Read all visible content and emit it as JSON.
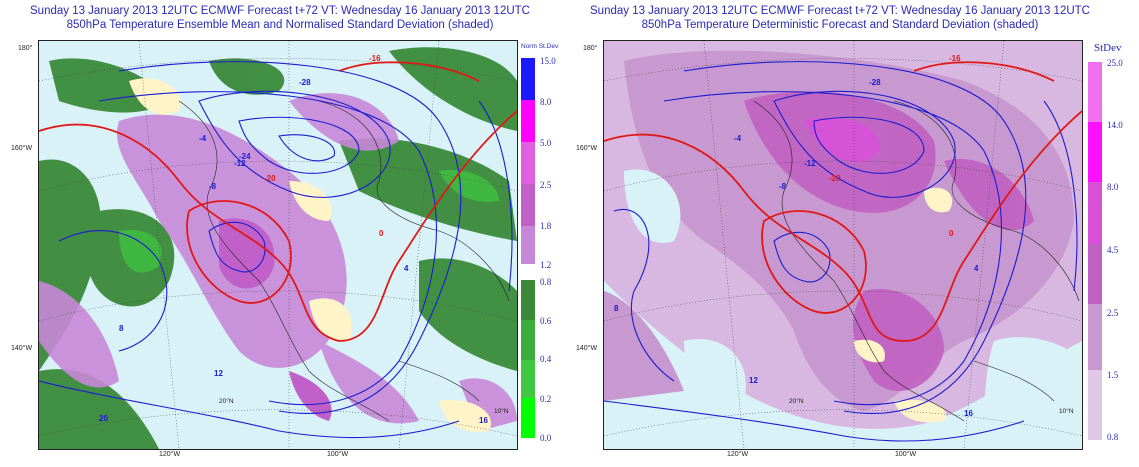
{
  "left_panel": {
    "title_line1": "Sunday 13 January 2013 12UTC ECMWF Forecast t+72  VT: Wednesday 16 January 2013 12UTC",
    "title_line2": "850hPa Temperature Ensemble Mean and Normalised Standard Deviation (shaded)",
    "lat_labels": [
      "180°",
      "160°W",
      "140°W"
    ],
    "lon_labels": [
      "120°W",
      "100°W"
    ],
    "map_labels": [
      "20°N",
      "10°N"
    ],
    "contour_labels": [
      "-16",
      "-20",
      "-24",
      "-28",
      "-12",
      "-8",
      "-4",
      "0",
      "4",
      "8",
      "12",
      "16",
      "20"
    ],
    "colorbar": {
      "title": "Norm St.Dev",
      "ticks": [
        "15.0",
        "8.0",
        "5.0",
        "2.5",
        "1.8",
        "1.2",
        "0.8",
        "0.6",
        "0.4",
        "0.2",
        "0.0"
      ],
      "colors": {
        "15.0": "#1a1aff",
        "8.0": "#ff00ff",
        "5.0": "#e060e0",
        "2.5": "#c060c8",
        "1.8": "#c888d8",
        "0.8": "#3a8a3a",
        "0.6": "#3cac3c",
        "0.4": "#40c840",
        "0.2": "#20e020",
        "0.0": "#00ff00"
      }
    }
  },
  "right_panel": {
    "title_line1": "Sunday 13 January 2013 12UTC ECMWF Forecast t+72  VT: Wednesday 16 January 2013 12UTC",
    "title_line2": "850hPa Temperature Deterministic Forecast and Standard Deviation (shaded)",
    "lat_labels": [
      "180°",
      "160°W",
      "140°W"
    ],
    "lon_labels": [
      "120°W",
      "100°W"
    ],
    "map_labels": [
      "20°N",
      "10°N"
    ],
    "contour_labels": [
      "-16",
      "-20",
      "-28",
      "-12",
      "-8",
      "-4",
      "0",
      "4",
      "8",
      "12",
      "16"
    ],
    "colorbar": {
      "title": "StDev",
      "ticks": [
        "25.0",
        "14.0",
        "8.0",
        "4.5",
        "2.5",
        "1.5",
        "0.8"
      ],
      "colors": {
        "25.0": "#f070f0",
        "14.0": "#ff10ff",
        "8.0": "#d850d8",
        "4.5": "#c060c0",
        "2.5": "#c898d0",
        "1.5": "#d8b8e0",
        "0.8": "#e8d8ec"
      }
    }
  },
  "colors": {
    "title_blue": "#2a2ab8",
    "contour_blue": "#1c1cd0",
    "contour_red": "#e01818",
    "land_cream": "#fff4c8",
    "sea_light_blue": "#d8f2f8"
  }
}
